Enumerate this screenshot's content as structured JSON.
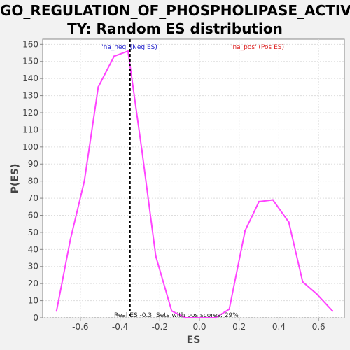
{
  "chart_data": {
    "type": "line",
    "title_line1": "GO_REGULATION_OF_PHOSPHOLIPASE_ACTIVI",
    "title_line2": "TY: Random ES distribution",
    "xlabel": "ES",
    "ylabel": "P(ES)",
    "xlim": [
      -0.79,
      0.73
    ],
    "ylim": [
      0,
      163
    ],
    "xticks": [
      -0.6,
      -0.4,
      -0.2,
      0.0,
      0.2,
      0.4,
      0.6
    ],
    "xtick_labels": [
      "-0.6",
      "-0.4",
      "-0.2",
      "0.0",
      "0.2",
      "0.4",
      "0.6"
    ],
    "yticks": [
      0,
      10,
      20,
      30,
      40,
      50,
      60,
      70,
      80,
      90,
      100,
      110,
      120,
      130,
      140,
      150,
      160
    ],
    "grid": true,
    "series": [
      {
        "color": "#ff44ff",
        "x": [
          -0.72,
          -0.65,
          -0.58,
          -0.51,
          -0.43,
          -0.36,
          -0.29,
          -0.22,
          -0.14,
          -0.07,
          0.0,
          0.08,
          0.15,
          0.23,
          0.3,
          0.37,
          0.45,
          0.52,
          0.59,
          0.67
        ],
        "y": [
          4,
          46,
          80,
          135,
          153,
          156,
          98,
          36,
          4,
          0,
          0,
          0,
          5,
          51,
          68,
          69,
          56,
          21,
          14,
          4
        ]
      }
    ],
    "real_es": -0.35,
    "legend": {
      "neg_label": "'na_neg' (Neg ES)",
      "neg_color": "#2222cc",
      "pos_label": "'na_pos' (Pos ES)",
      "pos_color": "#dd2222"
    },
    "annotations": {
      "real_es_text": "Real ES -0.3",
      "pos_scores_text": "Sets with pos scores: 29%"
    }
  }
}
